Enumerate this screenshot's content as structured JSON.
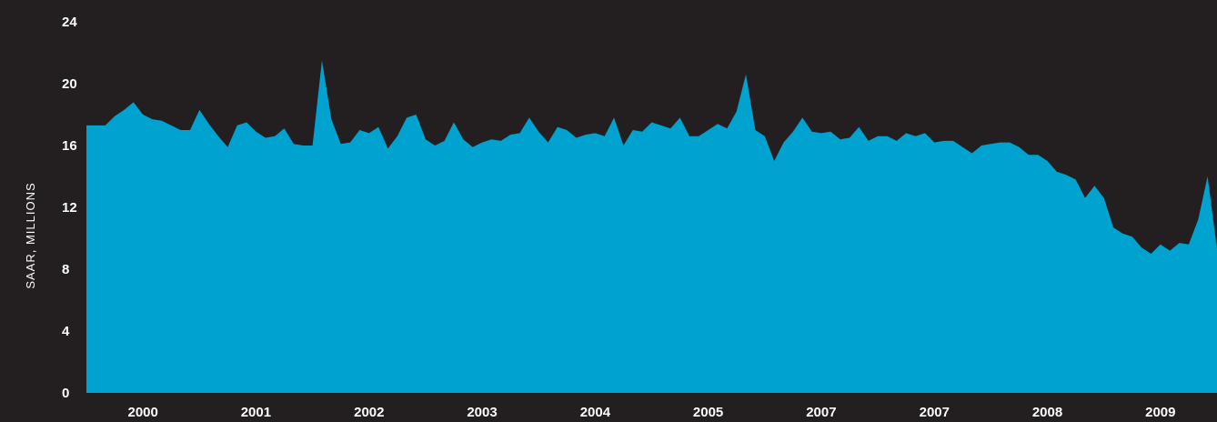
{
  "chart_data": {
    "type": "area",
    "title": "",
    "xlabel": "",
    "ylabel": "SAAR, MILLIONS",
    "ylim": [
      0,
      24
    ],
    "yticks": [
      0,
      4,
      8,
      12,
      16,
      20,
      24
    ],
    "x_tick_labels": [
      "2000",
      "2001",
      "2002",
      "2003",
      "2004",
      "2005",
      "2007",
      "2007",
      "2008",
      "2009"
    ],
    "grid": false,
    "legend": "none",
    "colors": {
      "background": "#231f20",
      "area": "#00a3d0",
      "text": "#ffffff"
    },
    "series": [
      {
        "values": [
          17.3,
          17.3,
          17.3,
          17.9,
          18.3,
          18.8,
          18.0,
          17.7,
          17.6,
          17.3,
          17.0,
          17.0,
          18.3,
          17.4,
          16.6,
          15.9,
          17.3,
          17.5,
          16.9,
          16.5,
          16.6,
          17.1,
          16.1,
          16.0,
          16.0,
          21.5,
          17.7,
          16.1,
          16.2,
          17.0,
          16.8,
          17.2,
          15.8,
          16.6,
          17.8,
          18.0,
          16.4,
          16.0,
          16.3,
          17.5,
          16.4,
          15.9,
          16.2,
          16.4,
          16.3,
          16.7,
          16.8,
          17.8,
          16.9,
          16.2,
          17.2,
          17.0,
          16.5,
          16.7,
          16.8,
          16.6,
          17.8,
          16.0,
          17.0,
          16.9,
          17.5,
          17.3,
          17.1,
          17.8,
          16.6,
          16.6,
          17.0,
          17.4,
          17.1,
          18.2,
          20.6,
          17.0,
          16.6,
          15.0,
          16.2,
          16.9,
          17.8,
          16.9,
          16.8,
          16.9,
          16.4,
          16.5,
          17.2,
          16.3,
          16.6,
          16.6,
          16.3,
          16.8,
          16.6,
          16.8,
          16.2,
          16.3,
          16.3,
          15.9,
          15.5,
          16.0,
          16.1,
          16.2,
          16.2,
          15.9,
          15.4,
          15.4,
          15.0,
          14.3,
          14.1,
          13.8,
          12.6,
          13.4,
          12.6,
          10.7,
          10.3,
          10.1,
          9.4,
          9.0,
          9.6,
          9.2,
          9.7,
          9.6,
          11.2,
          14.0,
          9.3
        ]
      }
    ]
  }
}
